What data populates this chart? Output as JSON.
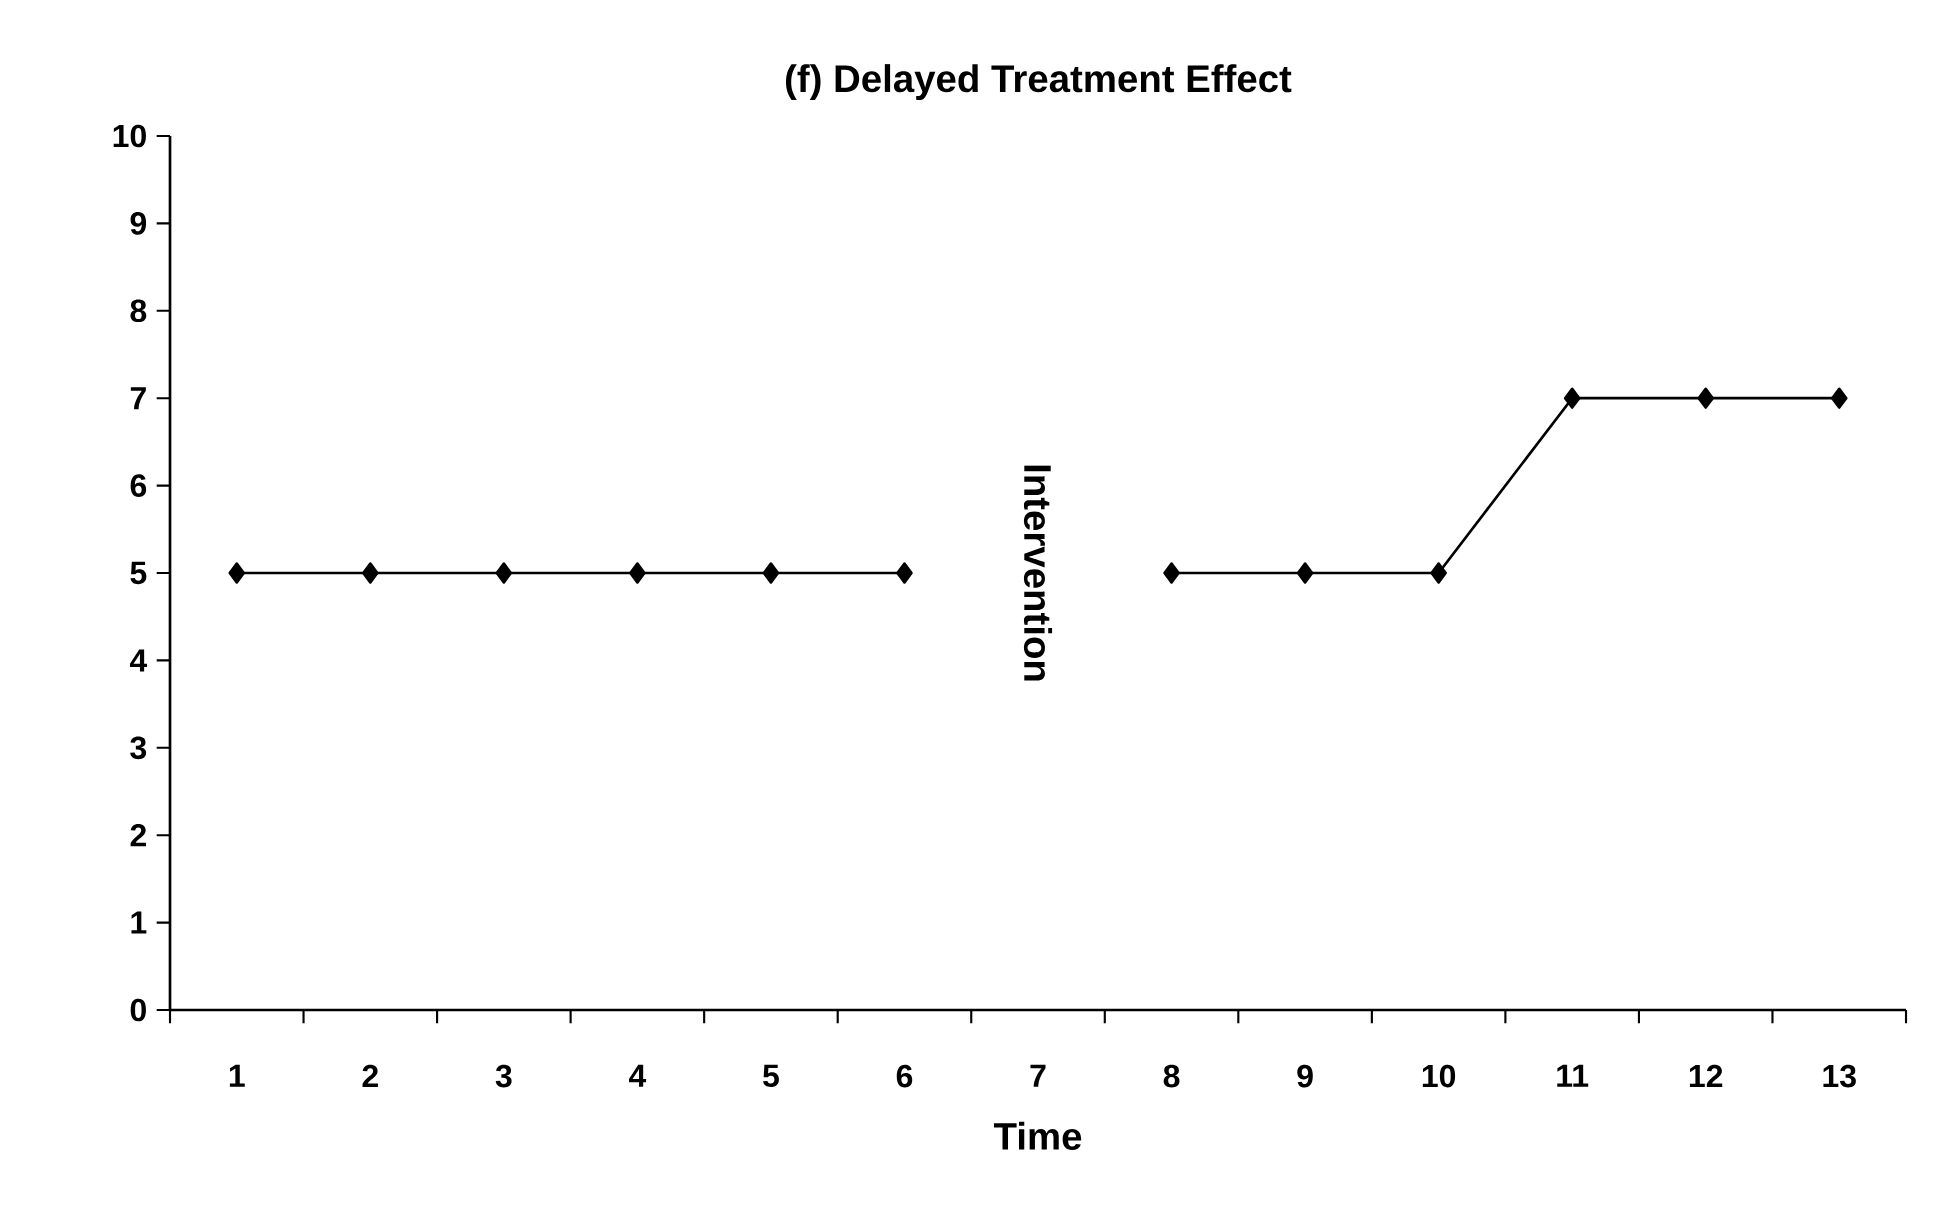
{
  "chart_data": {
    "type": "line",
    "title": "(f) Delayed Treatment Effect",
    "xlabel": "Time",
    "categories": [
      "1",
      "2",
      "3",
      "4",
      "5",
      "6",
      "7",
      "8",
      "9",
      "10",
      "11",
      "12",
      "13"
    ],
    "series": [
      {
        "color": "#000000",
        "values": [
          5,
          5,
          5,
          5,
          5,
          5,
          null,
          5,
          5,
          5,
          7,
          7,
          7
        ]
      }
    ],
    "ylim": [
      0,
      10
    ],
    "yticks": [
      0,
      1,
      2,
      3,
      4,
      5,
      6,
      7,
      8,
      9,
      10
    ],
    "marker": "diamond",
    "line_style": "solid",
    "grid": false,
    "annotations": [
      "Intervention"
    ]
  }
}
